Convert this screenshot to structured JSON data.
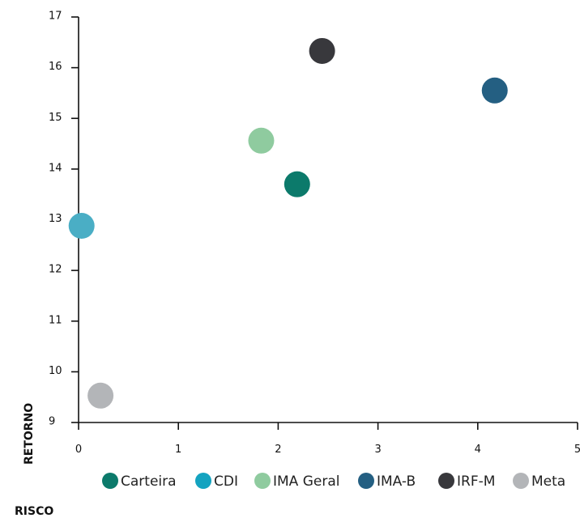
{
  "chart_data": {
    "type": "scatter",
    "xlabel": "RISCO",
    "ylabel": "RETORNO",
    "xlim": [
      0,
      5
    ],
    "ylim": [
      9,
      17
    ],
    "xticks": [
      0,
      1,
      2,
      3,
      4,
      5
    ],
    "yticks": [
      9,
      10,
      11,
      12,
      13,
      14,
      15,
      16,
      17
    ],
    "legend_position": "bottom",
    "series": [
      {
        "name": "Carteira",
        "color": "#0c7a6b",
        "points": [
          {
            "x": 2.19,
            "y": 13.7
          }
        ]
      },
      {
        "name": "CDI",
        "color": "#4aaec5",
        "points": [
          {
            "x": 0.03,
            "y": 12.88
          }
        ]
      },
      {
        "name": "IMA Geral",
        "color": "#8fcb9f",
        "points": [
          {
            "x": 1.83,
            "y": 14.56
          }
        ]
      },
      {
        "name": "IMA-B",
        "color": "#245f82",
        "points": [
          {
            "x": 4.17,
            "y": 15.55
          }
        ]
      },
      {
        "name": "IRF-M",
        "color": "#38383c",
        "points": [
          {
            "x": 2.44,
            "y": 16.33
          }
        ]
      },
      {
        "name": "Meta",
        "color": "#b3b5b8",
        "points": [
          {
            "x": 0.22,
            "y": 9.53
          }
        ]
      }
    ],
    "legend_colors": {
      "Carteira": "#0c7a6b",
      "CDI": "#14a3c0",
      "IMA Geral": "#8fcb9f",
      "IMA-B": "#245f82",
      "IRF-M": "#38383c",
      "Meta": "#b3b5b8"
    }
  }
}
